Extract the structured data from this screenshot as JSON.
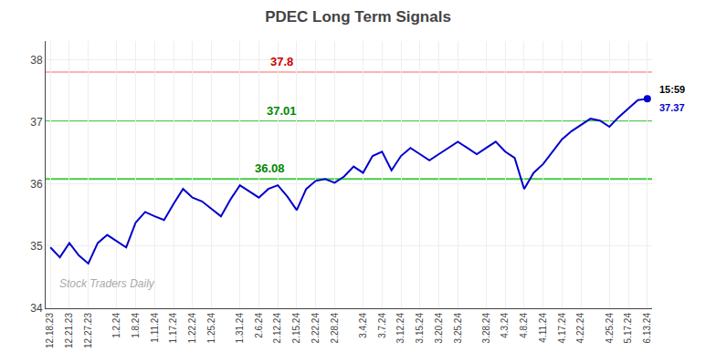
{
  "chart_data": {
    "type": "line",
    "title": "PDEC Long Term Signals",
    "categories": [
      "12.18.23",
      null,
      "12.21.23",
      null,
      "12.27.23",
      null,
      null,
      "1.2.24",
      null,
      "1.8.24",
      null,
      "1.11.24",
      null,
      "1.17.24",
      null,
      "1.22.24",
      null,
      "1.25.24",
      null,
      null,
      "1.31.24",
      null,
      "2.6.24",
      null,
      "2.12.24",
      null,
      "2.15.24",
      null,
      "2.22.24",
      null,
      "2.28.24",
      null,
      null,
      "3.4.24",
      null,
      "3.7.24",
      null,
      "3.12.24",
      null,
      "3.15.24",
      null,
      "3.20.24",
      null,
      "3.25.24",
      null,
      null,
      "3.28.24",
      null,
      "4.3.24",
      null,
      "4.8.24",
      null,
      "4.11.24",
      null,
      "4.17.24",
      null,
      "4.22.24",
      null,
      null,
      "4.25.24",
      null,
      "5.17.24",
      null,
      "6.13.24"
    ],
    "values": [
      34.98,
      34.82,
      35.05,
      34.85,
      34.72,
      35.05,
      35.18,
      35.08,
      34.98,
      35.38,
      35.55,
      35.48,
      35.42,
      35.68,
      35.92,
      35.78,
      35.72,
      35.6,
      35.48,
      35.75,
      35.98,
      35.88,
      35.78,
      35.92,
      35.98,
      35.8,
      35.58,
      35.92,
      36.05,
      36.08,
      36.02,
      36.12,
      36.28,
      36.18,
      36.45,
      36.52,
      36.22,
      36.45,
      36.58,
      36.48,
      36.38,
      36.48,
      36.58,
      36.68,
      36.58,
      36.48,
      36.58,
      36.68,
      36.52,
      36.42,
      35.92,
      36.18,
      36.32,
      36.52,
      36.72,
      36.85,
      36.95,
      37.05,
      37.02,
      36.92,
      37.08,
      37.22,
      37.35,
      37.37
    ],
    "color": "#0000cc",
    "ylim": [
      34.0,
      38.3
    ],
    "yticks": [
      34,
      35,
      36,
      37,
      38
    ],
    "grid": true,
    "hlines": [
      {
        "value": 37.8,
        "label": "37.8",
        "color": "#ffb3b3",
        "label_color": "#cc0000"
      },
      {
        "value": 37.01,
        "label": "37.01",
        "color": "#44cc44",
        "label_color": "#008800"
      },
      {
        "value": 36.08,
        "label": "36.08",
        "color": "#44cc44",
        "label_color": "#008800"
      }
    ],
    "annotations": [
      {
        "text": "15:59",
        "color": "#000000"
      },
      {
        "text": "37.37",
        "color": "#0000cc"
      }
    ],
    "watermark": {
      "text": "Stock Traders Daily",
      "color": "#aaaaaa"
    }
  }
}
